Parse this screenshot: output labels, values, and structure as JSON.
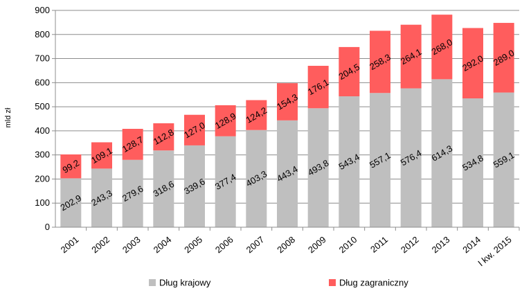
{
  "chart_data": {
    "type": "bar",
    "stacked": true,
    "categories": [
      "2001",
      "2002",
      "2003",
      "2004",
      "2005",
      "2006",
      "2007",
      "2008",
      "2009",
      "2010",
      "2011",
      "2012",
      "2013",
      "2014",
      "I kw. 2015"
    ],
    "series": [
      {
        "name": "Dług krajowy",
        "color": "#bfbfbf",
        "values": [
          202.9,
          243.3,
          279.6,
          318.6,
          339.6,
          377.4,
          403.3,
          443.4,
          493.8,
          543.4,
          557.1,
          576.4,
          614.3,
          534.8,
          559.1
        ],
        "labels": [
          "202,9",
          "243,3",
          "279,6",
          "318,6",
          "339,6",
          "377,4",
          "403,3",
          "443,4",
          "493,8",
          "543,4",
          "557,1",
          "576,4",
          "614,3",
          "534,8",
          "559,1"
        ]
      },
      {
        "name": "Dług zagraniczny",
        "color": "#ff5d5d",
        "values": [
          99.2,
          109.1,
          128.7,
          112.8,
          127.0,
          128.9,
          124.2,
          154.3,
          176.1,
          204.5,
          258.3,
          264.1,
          268.0,
          292.0,
          289.0
        ],
        "labels": [
          "99,2",
          "109,1",
          "128,7",
          "112,8",
          "127,0",
          "128,9",
          "124,2",
          "154,3",
          "176,1",
          "204,5",
          "258,3",
          "264,1",
          "268,0",
          "292,0",
          "289,0"
        ]
      }
    ],
    "ylabel": "mld zł",
    "ylim": [
      0,
      900
    ],
    "yticks": [
      0,
      100,
      200,
      300,
      400,
      500,
      600,
      700,
      800,
      900
    ],
    "grid": true,
    "legend": "bottom"
  }
}
